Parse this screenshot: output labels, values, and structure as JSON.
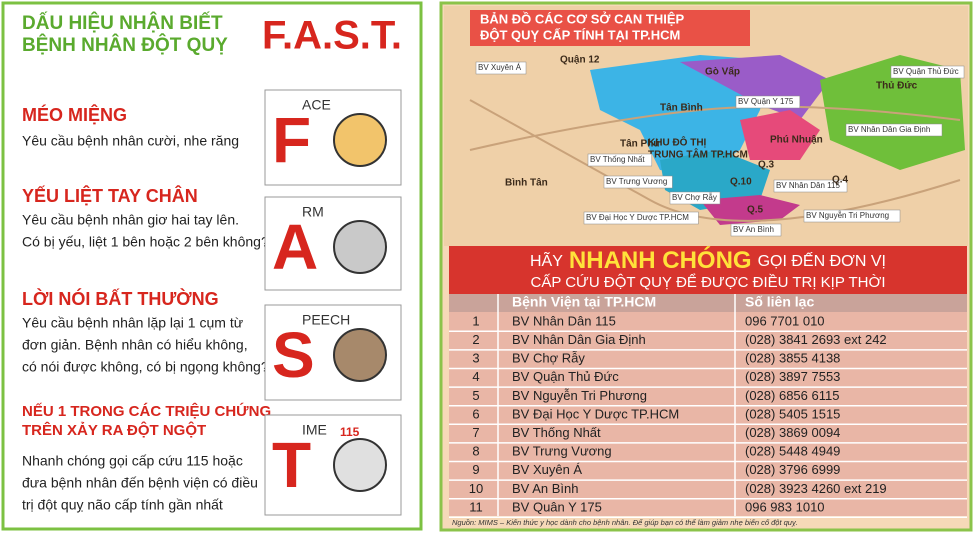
{
  "fast_panel": {
    "title_lines": [
      "DẤU HIỆU NHẬN BIẾT",
      "BỆNH NHÂN ĐỘT QUỴ"
    ],
    "brand": "F.A.S.T.",
    "items": [
      {
        "heading_lines": [
          "MÉO MIỆNG"
        ],
        "body_lines": [
          "Yêu cầu bệnh nhân cười, nhe răng"
        ],
        "letter": "F",
        "word": "ACE"
      },
      {
        "heading_lines": [
          "YẾU LIỆT TAY CHÂN"
        ],
        "body_lines": [
          "Yêu cầu bệnh nhân giơ hai tay lên.",
          "Có bị yếu, liệt 1 bên hoặc 2 bên không?"
        ],
        "letter": "A",
        "word": "RM"
      },
      {
        "heading_lines": [
          "LỜI NÓI BẤT THƯỜNG"
        ],
        "body_lines": [
          "Yêu cầu bệnh nhân lặp lại 1 cụm từ",
          "đơn giản. Bệnh nhân có hiểu không,",
          "có nói được không, có bị ngọng không?"
        ],
        "letter": "S",
        "word": "PEECH"
      },
      {
        "heading_lines": [
          "NẾU 1 TRONG CÁC TRIỆU CHỨNG",
          "TRÊN XẢY RA ĐỘT NGỘT"
        ],
        "body_lines": [
          "Nhanh chóng gọi cấp cứu 115 hoặc",
          "đưa bệnh nhân đến bệnh viện có điều",
          "trị đột quỵ não cấp tính gần nhất"
        ],
        "letter": "T",
        "word": "IME",
        "badge": "115"
      }
    ]
  },
  "map": {
    "title_lines": [
      "BẢN ĐỒ CÁC CƠ SỞ CAN THIỆP",
      "ĐỘT QUỴ CẤP TÍNH TẠI TP.HCM"
    ],
    "labels": [
      "BV Xuyên Á",
      "Quận 12",
      "Gò Vấp",
      "Tân Bình",
      "BV Quận Y 175",
      "Thủ Đức",
      "BV Quận Thủ Đức",
      "Phú Nhuận",
      "BV Nhân Dân Gia Định",
      "Tân Phú",
      "KHU ĐÔ THỊ",
      "TRUNG TÂM TP.HCM",
      "BV Thống Nhất",
      "Q.3",
      "Bình Tân",
      "BV Trưng Vương",
      "BV Chợ Rẫy",
      "Q.10",
      "BV Nhân Dân 115",
      "Q.4",
      "Q.5",
      "BV Đại Học Y Dược TP.HCM",
      "BV Nguyễn Tri Phương",
      "BV An Bình"
    ]
  },
  "banner": {
    "line1": [
      "HÃY",
      "NHANH CHÓNG",
      "GỌI ĐẾN ĐƠN VỊ"
    ],
    "line2": "CẤP CỨU ĐỘT QUỴ ĐỂ ĐƯỢC ĐIỀU TRỊ KỊP THỜI"
  },
  "table": {
    "header": [
      "Bệnh Viện tại TP.HCM",
      "Số liên lạc"
    ],
    "rows": [
      [
        "1",
        "BV Nhân Dân 115",
        "096 7701 010"
      ],
      [
        "2",
        "BV Nhân Dân Gia Định",
        "(028) 3841 2693 ext 242"
      ],
      [
        "3",
        "BV Chợ Rẫy",
        "(028) 3855 4138"
      ],
      [
        "4",
        "BV Quận Thủ Đức",
        "(028) 3897 7553"
      ],
      [
        "5",
        "BV Nguyễn Tri Phương",
        "(028) 6856 6115"
      ],
      [
        "6",
        "BV Đại Học Y Dược TP.HCM",
        "(028) 5405 1515"
      ],
      [
        "7",
        "BV Thống Nhất",
        "(028) 3869 0094"
      ],
      [
        "8",
        "BV Trưng Vương",
        "(028) 5448 4949"
      ],
      [
        "9",
        "BV Xuyên Á",
        "(028) 3796 6999"
      ],
      [
        "10",
        "BV An Bình",
        "(028) 3923 4260 ext 219"
      ],
      [
        "11",
        "BV Quân Y 175",
        "096 983 1010"
      ]
    ]
  },
  "source": "Nguồn: MIMS – Kiến thức y học dành cho bệnh nhân. Để giúp bạn có thể làm giảm nhẹ biến cố đột quỵ."
}
